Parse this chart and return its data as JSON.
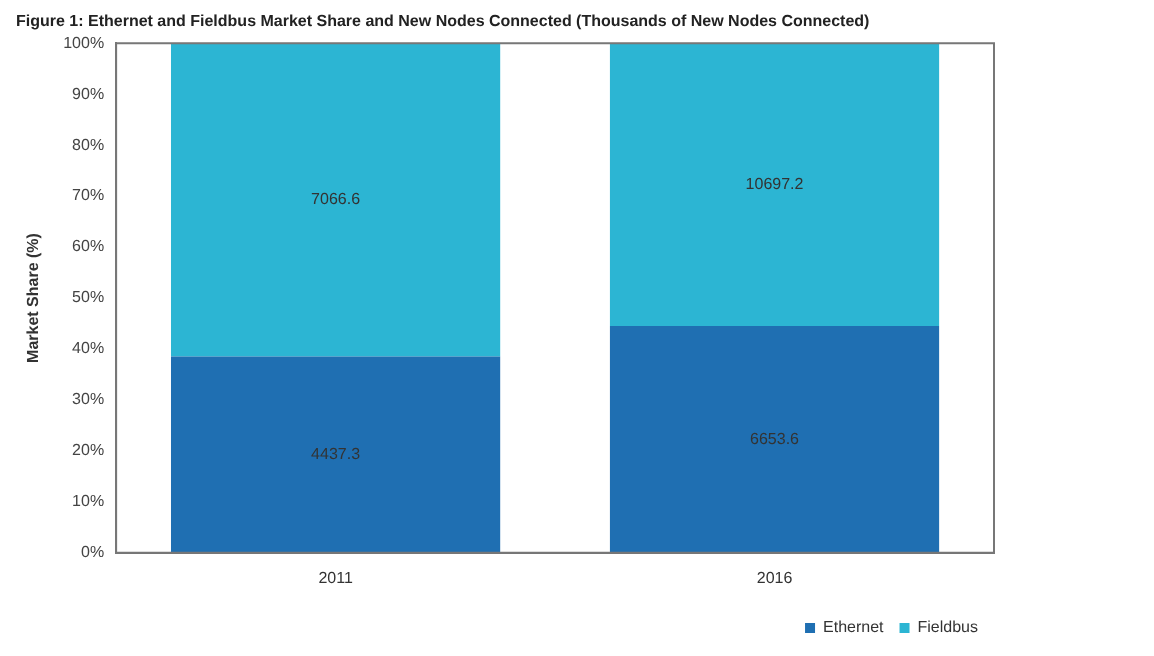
{
  "chart_data": {
    "type": "bar",
    "stacked": true,
    "title": "Figure 1: Ethernet and Fieldbus Market Share and New Nodes Connected (Thousands of New Nodes Connected)",
    "ylabel": "Market Share (%)",
    "categories": [
      "2011",
      "2016"
    ],
    "series": [
      {
        "name": "Ethernet",
        "color": "#1f6fb2",
        "values": [
          38.5,
          44.5
        ]
      },
      {
        "name": "Fieldbus",
        "color": "#2cb5d3",
        "values": [
          61.5,
          55.5
        ]
      }
    ],
    "annotations": [
      "4437.3",
      "7066.6",
      "6653.6",
      "10697.2"
    ],
    "ylim": [
      0,
      100
    ],
    "yticks": [
      {
        "value": 0,
        "label": "0%"
      },
      {
        "value": 10,
        "label": "10%"
      },
      {
        "value": 20,
        "label": "20%"
      },
      {
        "value": 30,
        "label": "30%"
      },
      {
        "value": 40,
        "label": "40%"
      },
      {
        "value": 50,
        "label": "50%"
      },
      {
        "value": 60,
        "label": "60%"
      },
      {
        "value": 70,
        "label": "70%"
      },
      {
        "value": 80,
        "label": "80%"
      },
      {
        "value": 90,
        "label": "90%"
      },
      {
        "value": 100,
        "label": "100%"
      }
    ],
    "grid": false,
    "legend": "bottom right"
  }
}
